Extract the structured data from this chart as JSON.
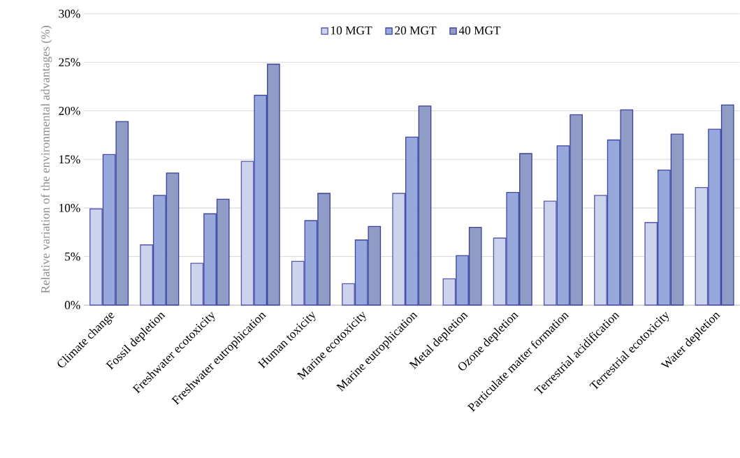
{
  "chart_data": {
    "type": "bar",
    "ylabel": "Relative variation of the environmental advantages (%)",
    "categories": [
      "Climate change",
      "Fossil depletion",
      "Freshwater ecotoxicity",
      "Freshwater eutrophication",
      "Human toxicity",
      "Marine ecotoxicity",
      "Marine eutrophication",
      "Metal depletion",
      "Ozone depletion",
      "Particulate matter formation",
      "Terrestrial acidification",
      "Terrestrial ecotoxicity",
      "Water depletion"
    ],
    "series": [
      {
        "name": "10 MGT",
        "color": "#ccd3ec",
        "values": [
          9.9,
          6.2,
          4.3,
          14.8,
          4.5,
          2.2,
          11.5,
          2.7,
          6.9,
          10.7,
          11.3,
          8.5,
          12.1
        ]
      },
      {
        "name": "20 MGT",
        "color": "#97a9dc",
        "values": [
          15.5,
          11.3,
          9.4,
          21.6,
          8.7,
          6.7,
          17.3,
          5.1,
          11.6,
          16.4,
          17.0,
          13.9,
          18.1
        ]
      },
      {
        "name": "40 MGT",
        "color": "#8f9cc6",
        "values": [
          18.9,
          13.6,
          10.9,
          24.8,
          11.5,
          8.1,
          20.5,
          8.0,
          15.6,
          19.6,
          20.1,
          17.6,
          20.6
        ]
      }
    ],
    "ylim": [
      0,
      30
    ],
    "yticks": [
      {
        "value": 0,
        "label": "0%"
      },
      {
        "value": 5,
        "label": "5%"
      },
      {
        "value": 10,
        "label": "10%"
      },
      {
        "value": 15,
        "label": "15%"
      },
      {
        "value": 20,
        "label": "20%"
      },
      {
        "value": 25,
        "label": "25%"
      },
      {
        "value": 30,
        "label": "30%"
      }
    ],
    "grid": "y",
    "legend": "top"
  }
}
